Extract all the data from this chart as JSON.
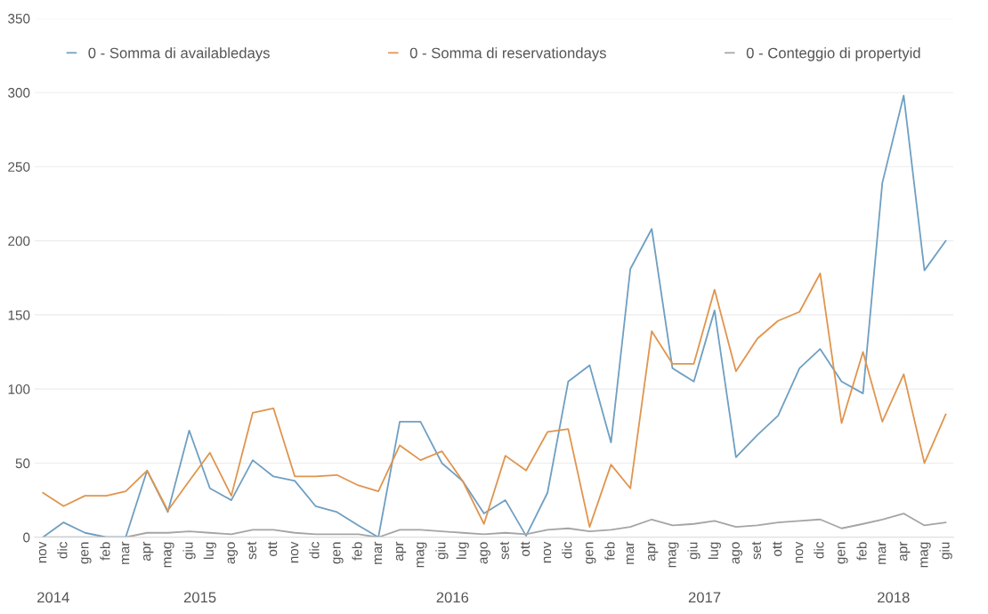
{
  "chart_data": {
    "type": "line",
    "x": [
      "2014-11",
      "2014-12",
      "2015-01",
      "2015-02",
      "2015-03",
      "2015-04",
      "2015-05",
      "2015-06",
      "2015-07",
      "2015-08",
      "2015-09",
      "2015-10",
      "2015-11",
      "2015-12",
      "2016-01",
      "2016-02",
      "2016-03",
      "2016-04",
      "2016-05",
      "2016-06",
      "2016-07",
      "2016-08",
      "2016-09",
      "2016-10",
      "2016-11",
      "2016-12",
      "2017-01",
      "2017-02",
      "2017-03",
      "2017-04",
      "2017-05",
      "2017-06",
      "2017-07",
      "2017-08",
      "2017-09",
      "2017-10",
      "2017-11",
      "2017-12",
      "2018-01",
      "2018-02",
      "2018-03",
      "2018-04",
      "2018-05",
      "2018-06"
    ],
    "series": [
      {
        "name": "0 - Somma di availabledays",
        "color": "#6f9fc2",
        "values": [
          0,
          10,
          3,
          0,
          0,
          45,
          17,
          72,
          33,
          25,
          52,
          41,
          38,
          21,
          17,
          8,
          0,
          78,
          78,
          50,
          38,
          16,
          25,
          1,
          30,
          105,
          116,
          64,
          181,
          208,
          114,
          105,
          153,
          54,
          69,
          82,
          114,
          127,
          105,
          97,
          239,
          298,
          180,
          200
        ]
      },
      {
        "name": "0 - Somma di reservationdays",
        "color": "#e0954e",
        "values": [
          30,
          21,
          28,
          28,
          31,
          45,
          18,
          38,
          57,
          28,
          84,
          87,
          41,
          41,
          42,
          35,
          31,
          62,
          52,
          58,
          38,
          9,
          55,
          45,
          71,
          73,
          7,
          49,
          33,
          139,
          117,
          117,
          167,
          112,
          134,
          146,
          152,
          178,
          77,
          125,
          78,
          110,
          50,
          83
        ]
      },
      {
        "name": "0 - Conteggio di propertyid",
        "color": "#a5a5a5",
        "values": [
          0,
          0,
          0,
          0,
          0,
          3,
          3,
          4,
          3,
          2,
          5,
          5,
          3,
          2,
          2,
          2,
          0,
          5,
          5,
          4,
          3,
          2,
          3,
          2,
          5,
          6,
          4,
          5,
          7,
          12,
          8,
          9,
          11,
          7,
          8,
          10,
          11,
          12,
          6,
          9,
          12,
          16,
          8,
          10
        ]
      }
    ],
    "xlim": [
      "2014-10-20",
      "2018-06-12"
    ],
    "xticks": [
      {
        "value": "2014-11",
        "label": "nov"
      },
      {
        "value": "2014-12",
        "label": "dic"
      },
      {
        "value": "2015-01",
        "label": "gen"
      },
      {
        "value": "2015-02",
        "label": "feb"
      },
      {
        "value": "2015-03",
        "label": "mar"
      },
      {
        "value": "2015-04",
        "label": "apr"
      },
      {
        "value": "2015-05",
        "label": "mag"
      },
      {
        "value": "2015-06",
        "label": "giu"
      },
      {
        "value": "2015-07",
        "label": "lug"
      },
      {
        "value": "2015-08",
        "label": "ago"
      },
      {
        "value": "2015-09",
        "label": "set"
      },
      {
        "value": "2015-10",
        "label": "ott"
      },
      {
        "value": "2015-11",
        "label": "nov"
      },
      {
        "value": "2015-12",
        "label": "dic"
      },
      {
        "value": "2016-01",
        "label": "gen"
      },
      {
        "value": "2016-02",
        "label": "feb"
      },
      {
        "value": "2016-03",
        "label": "mar"
      },
      {
        "value": "2016-04",
        "label": "apr"
      },
      {
        "value": "2016-05",
        "label": "mag"
      },
      {
        "value": "2016-06",
        "label": "giu"
      },
      {
        "value": "2016-07",
        "label": "lug"
      },
      {
        "value": "2016-08",
        "label": "ago"
      },
      {
        "value": "2016-09",
        "label": "set"
      },
      {
        "value": "2016-10",
        "label": "ott"
      },
      {
        "value": "2016-11",
        "label": "nov"
      },
      {
        "value": "2016-12",
        "label": "dic"
      },
      {
        "value": "2017-01",
        "label": "gen"
      },
      {
        "value": "2017-02",
        "label": "feb"
      },
      {
        "value": "2017-03",
        "label": "mar"
      },
      {
        "value": "2017-04",
        "label": "apr"
      },
      {
        "value": "2017-05",
        "label": "mag"
      },
      {
        "value": "2017-06",
        "label": "giu"
      },
      {
        "value": "2017-07",
        "label": "lug"
      },
      {
        "value": "2017-08",
        "label": "ago"
      },
      {
        "value": "2017-09",
        "label": "set"
      },
      {
        "value": "2017-10",
        "label": "ott"
      },
      {
        "value": "2017-11",
        "label": "nov"
      },
      {
        "value": "2017-12",
        "label": "dic"
      },
      {
        "value": "2018-01",
        "label": "gen"
      },
      {
        "value": "2018-02",
        "label": "feb"
      },
      {
        "value": "2018-03",
        "label": "mar"
      },
      {
        "value": "2018-04",
        "label": "apr"
      },
      {
        "value": "2018-05",
        "label": "mag"
      },
      {
        "value": "2018-06",
        "label": "giu"
      }
    ],
    "ylim": [
      0,
      350
    ],
    "yticks": [
      0,
      50,
      100,
      150,
      200,
      250,
      300,
      350
    ],
    "annotations": [
      "2014",
      "2015",
      "2016",
      "2017",
      "2018"
    ],
    "grid": "y",
    "legend": "top",
    "line_style": "solid",
    "marker": "none"
  }
}
